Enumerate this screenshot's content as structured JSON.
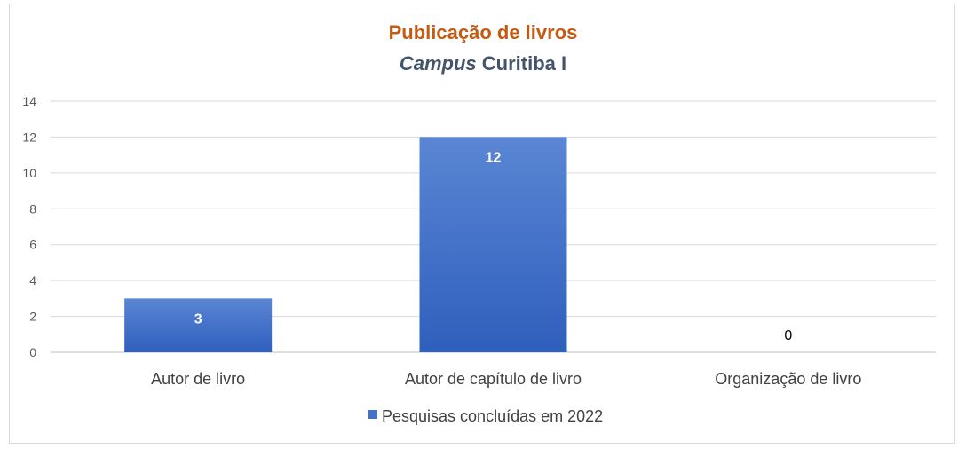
{
  "chart_data": {
    "type": "bar",
    "title": "Publicação de livros",
    "subtitle_italic": "Campus",
    "subtitle_rest": " Curitiba I",
    "categories": [
      "Autor de livro",
      "Autor de capítulo de livro",
      "Organização de livro"
    ],
    "series": [
      {
        "name": "Pesquisas concluídas em 2022",
        "values": [
          3,
          12,
          0
        ]
      }
    ],
    "ylim": [
      0,
      14
    ],
    "yticks": [
      0,
      2,
      4,
      6,
      8,
      10,
      12,
      14
    ],
    "grid": true,
    "legend_position": "bottom",
    "colors": {
      "bar_top": "#5b86d4",
      "bar_bottom": "#2f5fbd",
      "title": "#c55a11",
      "subtitle": "#44546a"
    }
  }
}
